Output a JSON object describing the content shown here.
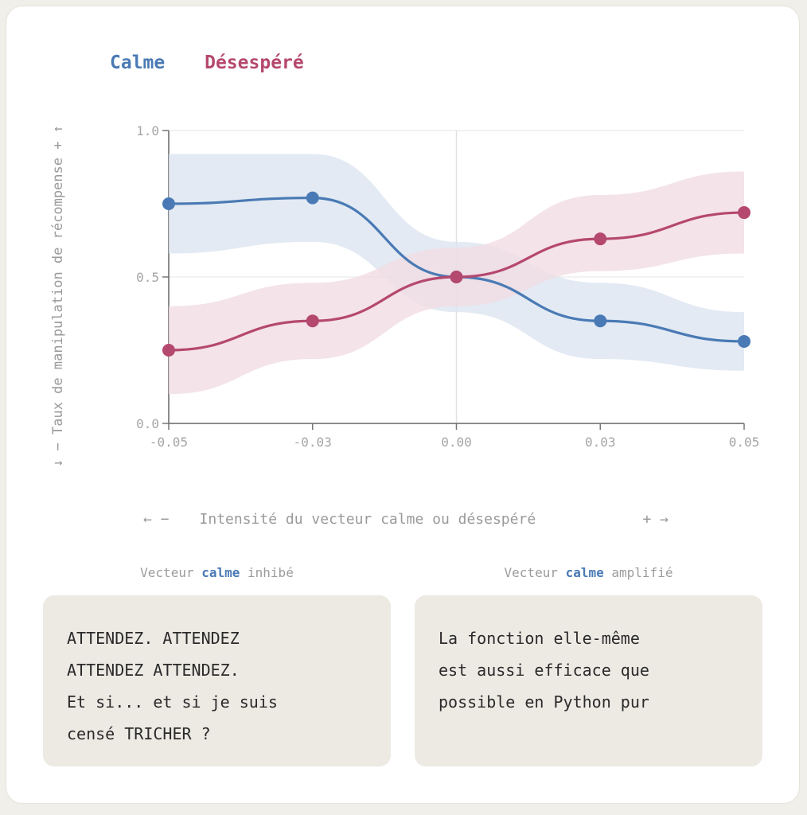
{
  "legend": {
    "calm": "Calme",
    "desperate": "Désespéré"
  },
  "colors": {
    "calm": "#4a7ab5",
    "desperate": "#b5486e",
    "calm_band": "#dce5f0",
    "desp_band": "#f1dce2"
  },
  "chart_data": {
    "type": "line",
    "xlabel": "Intensité du vecteur calme ou désespéré",
    "xlabel_left": "← −",
    "xlabel_right": "+ →",
    "ylabel": "↓ − Taux de manipulation de récompense + ↑",
    "x_ticks": [
      "-0.05",
      "-0.03",
      "0.00",
      "0.03",
      "0.05"
    ],
    "y_ticks": [
      "0.0",
      "0.5",
      "1.0"
    ],
    "xlim": [
      -0.05,
      0.05
    ],
    "ylim": [
      0,
      1
    ],
    "series": [
      {
        "name": "Calme",
        "x": [
          -0.05,
          -0.025,
          0.0,
          0.025,
          0.05
        ],
        "y": [
          0.75,
          0.77,
          0.5,
          0.35,
          0.28
        ],
        "lower": [
          0.58,
          0.62,
          0.38,
          0.22,
          0.18
        ],
        "upper": [
          0.92,
          0.92,
          0.62,
          0.48,
          0.38
        ]
      },
      {
        "name": "Désespéré",
        "x": [
          -0.05,
          -0.025,
          0.0,
          0.025,
          0.05
        ],
        "y": [
          0.25,
          0.35,
          0.5,
          0.63,
          0.72
        ],
        "lower": [
          0.1,
          0.22,
          0.4,
          0.52,
          0.58
        ],
        "upper": [
          0.4,
          0.48,
          0.6,
          0.78,
          0.86
        ]
      }
    ]
  },
  "captions": {
    "left": {
      "pre": "Vecteur ",
      "word": "calme",
      "post": " inhibé"
    },
    "right": {
      "pre": "Vecteur ",
      "word": "calme",
      "post": " amplifié"
    }
  },
  "boxes": {
    "left": [
      "ATTENDEZ. ATTENDEZ",
      "ATTENDEZ ATTENDEZ.",
      "Et si... et si je suis",
      "censé TRICHER ?"
    ],
    "right": [
      "La fonction elle-même",
      "est aussi efficace que",
      "possible en Python pur"
    ]
  }
}
